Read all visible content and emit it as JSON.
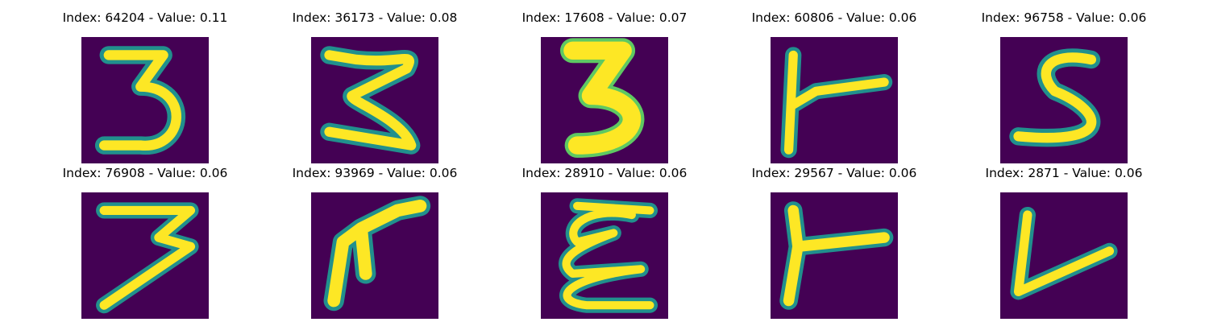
{
  "colors": {
    "background": "#440154",
    "edge": "#21908d",
    "mid": "#5ec962",
    "stroke": "#fde725"
  },
  "panels": [
    {
      "title": "Index: 64204 - Value: 0.11",
      "depicts": "3"
    },
    {
      "title": "Index: 36173 - Value: 0.08",
      "depicts": "3"
    },
    {
      "title": "Index: 17608 - Value: 0.07",
      "depicts": "3"
    },
    {
      "title": "Index: 60806 - Value: 0.06",
      "depicts": "t"
    },
    {
      "title": "Index: 96758 - Value: 0.06",
      "depicts": "s"
    },
    {
      "title": "Index: 76908 - Value: 0.06",
      "depicts": "3"
    },
    {
      "title": "Index: 93969 - Value: 0.06",
      "depicts": "arrow"
    },
    {
      "title": "Index: 28910 - Value: 0.06",
      "depicts": "e"
    },
    {
      "title": "Index: 29567 - Value: 0.06",
      "depicts": "t"
    },
    {
      "title": "Index: 2871 - Value: 0.06",
      "depicts": "v"
    }
  ]
}
